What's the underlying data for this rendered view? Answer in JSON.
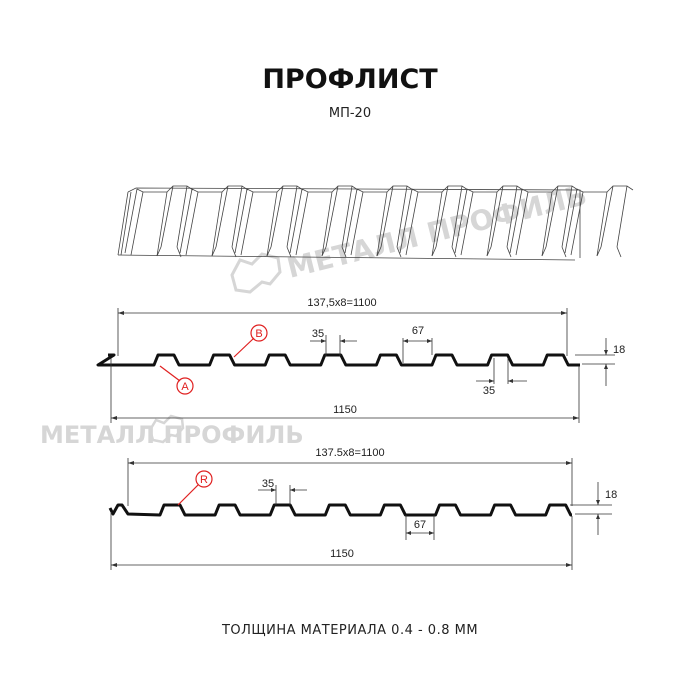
{
  "title": "ПРОФЛИСТ",
  "subtitle": "МП-20",
  "footer": "ТОЛЩИНА МАТЕРИАЛА 0.4 - 0.8 ММ",
  "watermark": "МЕТАЛЛ ПРОФИЛЬ",
  "profile_a": {
    "pitch_label": "137,5x8=1100",
    "width_label": "1150",
    "top_flat_label": "35",
    "bottom_flat_label": "35",
    "rib_label": "67",
    "height_label": "18",
    "marker_a": "A",
    "marker_b": "B"
  },
  "profile_b": {
    "pitch_label": "137.5x8=1100",
    "width_label": "1150",
    "top_flat_label": "35",
    "rib_label": "67",
    "height_label": "18",
    "marker_r": "R"
  },
  "colors": {
    "line": "#111111",
    "marker": "#e02020",
    "watermark": "#d6d6d6"
  }
}
